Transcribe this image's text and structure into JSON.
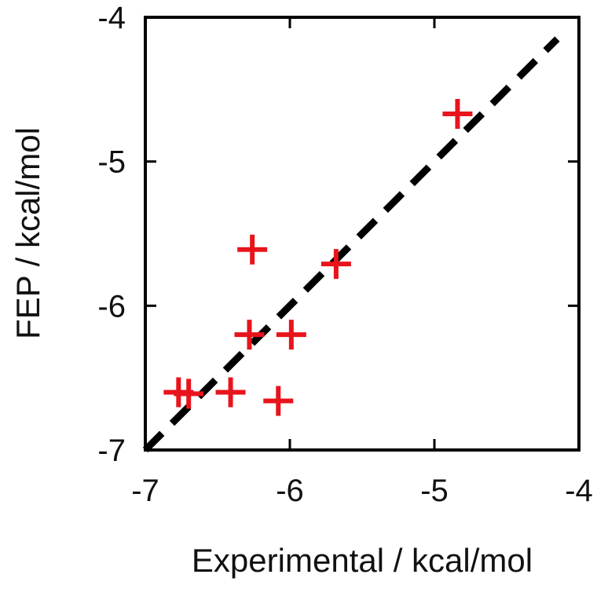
{
  "chart_data": {
    "type": "scatter",
    "title": "",
    "xlabel": "Experimental / kcal/mol",
    "ylabel": "FEP / kcal/mol",
    "xlim": [
      -7,
      -4
    ],
    "ylim": [
      -7,
      -4
    ],
    "xticks": [
      "-7",
      "-6",
      "-5",
      "-4"
    ],
    "yticks": [
      "-4",
      "-5",
      "-6",
      "-7"
    ],
    "grid": false,
    "legend": "none",
    "marker": "plus",
    "marker_color": "#e8141c",
    "reference_line": {
      "type": "y=x",
      "style": "dashed",
      "color": "#000000",
      "range": [
        -7,
        -4.15
      ]
    },
    "points": [
      {
        "x": -4.84,
        "y": -4.67
      },
      {
        "x": -6.26,
        "y": -5.61
      },
      {
        "x": -5.68,
        "y": -5.71
      },
      {
        "x": -6.28,
        "y": -6.2
      },
      {
        "x": -5.99,
        "y": -6.2
      },
      {
        "x": -6.77,
        "y": -6.6
      },
      {
        "x": -6.7,
        "y": -6.61
      },
      {
        "x": -6.41,
        "y": -6.6
      },
      {
        "x": -6.08,
        "y": -6.66
      }
    ]
  }
}
